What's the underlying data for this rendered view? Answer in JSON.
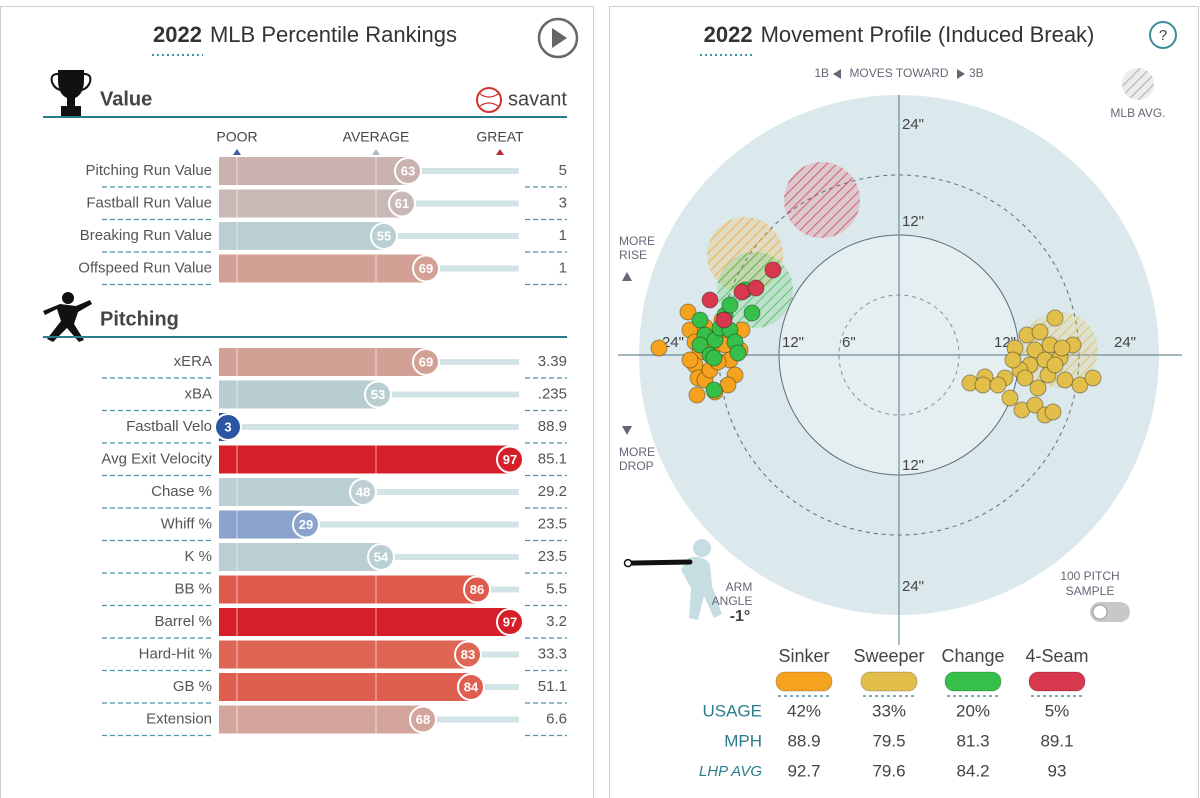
{
  "chart_data": [
    {
      "type": "bar",
      "title_year": "2022",
      "title": "MLB Percentile Rankings",
      "brand": "savant",
      "scale_labels": [
        "POOR",
        "AVERAGE",
        "GREAT"
      ],
      "xlim": [
        0,
        100
      ],
      "sections": [
        {
          "title": "Value",
          "categories": [
            "Pitching Run Value",
            "Fastball Run Value",
            "Breaking Run Value",
            "Offspeed Run Value"
          ],
          "values": [
            63,
            61,
            55,
            69
          ],
          "colors": [
            "#c9b2af",
            "#c8b9b6",
            "#b9cfd2",
            "#d3a096"
          ],
          "stats": [
            "5",
            "3",
            "1",
            "1"
          ]
        },
        {
          "title": "Pitching",
          "categories": [
            "xERA",
            "xBA",
            "Fastball Velo",
            "Avg Exit Velocity",
            "Chase %",
            "Whiff %",
            "K %",
            "BB %",
            "Barrel %",
            "Hard-Hit %",
            "GB %",
            "Extension"
          ],
          "values": [
            69,
            53,
            3,
            97,
            48,
            29,
            54,
            86,
            97,
            83,
            84,
            68
          ],
          "colors": [
            "#d3a096",
            "#b7cdd0",
            "#2d56a2",
            "#d5202a",
            "#bccfd3",
            "#8aa3cc",
            "#b9cfd2",
            "#dd5a4c",
            "#d5202a",
            "#df6554",
            "#de5e50",
            "#d4a59c"
          ],
          "stats": [
            "3.39",
            ".235",
            "88.9",
            "85.1",
            "29.2",
            "23.5",
            "23.5",
            "5.5",
            "3.2",
            "33.3",
            "51.1",
            "6.6"
          ]
        }
      ]
    },
    {
      "type": "scatter",
      "title_year": "2022",
      "title": "Movement Profile (Induced Break)",
      "help": "?",
      "direction": [
        "1B",
        "MOVES TOWARD",
        "3B"
      ],
      "avg_label": "MLB AVG.",
      "rise_label": [
        "MORE",
        "RISE"
      ],
      "drop_label": [
        "MORE",
        "DROP"
      ],
      "xlim": [
        -26,
        26
      ],
      "ylim": [
        -26,
        26
      ],
      "xticks": [
        {
          "value": -24,
          "label": "24\""
        },
        {
          "value": -12,
          "label": "12\""
        },
        {
          "value": -6,
          "label": "6\""
        },
        {
          "value": 12,
          "label": "12\""
        },
        {
          "value": 24,
          "label": "24\""
        }
      ],
      "yticks": [
        {
          "value": 24,
          "label": "24\""
        },
        {
          "value": 12,
          "label": "12\""
        },
        {
          "value": -12,
          "label": "12\""
        },
        {
          "value": -24,
          "label": "24\""
        }
      ],
      "rings": [
        {
          "value": 6,
          "dashed": true
        },
        {
          "value": 12,
          "dashed": false
        },
        {
          "value": 18,
          "dashed": true
        }
      ],
      "row_labels": [
        "USAGE",
        "MPH",
        "LHP AVG"
      ],
      "series": [
        {
          "name": "Sinker",
          "color": "#f5a31e",
          "usage": "42%",
          "mph": 88.9,
          "lhp_avg": 92.7,
          "avg": [
            -15.4,
            10.0
          ],
          "x": [
            -24.0,
            -21.1,
            -20.9,
            -20.4,
            -19.9,
            -20.4,
            -20.1,
            -20.2,
            -19.4,
            -18.9,
            -18.7,
            -18.1,
            -17.7,
            -17.4,
            -16.9,
            -16.4,
            -17.1,
            -15.9,
            -15.7,
            -18.4,
            -19.4,
            -20.9,
            -18.1
          ],
          "y": [
            0.7,
            4.3,
            2.5,
            1.3,
            0.3,
            -1.0,
            -2.3,
            -4.0,
            -2.5,
            -1.5,
            0.5,
            2.0,
            3.5,
            1.0,
            -0.5,
            -2.0,
            -3.0,
            0.5,
            2.5,
            -3.7,
            2.8,
            -0.5,
            -0.7
          ]
        },
        {
          "name": "Sweeper",
          "color": "#e2be4b",
          "usage": "33%",
          "mph": 79.5,
          "lhp_avg": 79.6,
          "avg": [
            16.1,
            0.5
          ],
          "x": [
            12.8,
            14.1,
            15.6,
            17.4,
            15.1,
            13.6,
            11.6,
            13.1,
            14.6,
            16.1,
            12.1,
            10.6,
            8.6,
            7.1,
            8.4,
            9.9,
            11.1,
            12.3,
            13.6,
            14.6,
            15.4,
            16.6,
            18.1,
            19.4,
            14.9,
            15.6,
            12.6,
            11.4,
            16.3,
            13.9
          ],
          "y": [
            2.0,
            2.3,
            3.7,
            1.0,
            1.0,
            0.5,
            0.7,
            -1.0,
            -0.5,
            -0.3,
            -1.5,
            -2.3,
            -2.2,
            -2.8,
            -3.0,
            -3.0,
            -4.3,
            -5.5,
            -5.0,
            -6.0,
            -5.7,
            -2.5,
            -3.0,
            -2.3,
            -2.0,
            -1.0,
            -2.3,
            -0.5,
            0.7,
            -3.3
          ]
        },
        {
          "name": "Change",
          "color": "#36bf4a",
          "usage": "20%",
          "mph": 81.3,
          "lhp_avg": 84.2,
          "avg": [
            -14.4,
            6.5
          ],
          "x": [
            -19.9,
            -19.4,
            -19.9,
            -18.9,
            -18.4,
            -17.9,
            -17.4,
            -16.9,
            -16.4,
            -18.5,
            -14.7,
            -15.4,
            -18.5,
            -16.1,
            -16.9
          ],
          "y": [
            3.5,
            2.0,
            1.0,
            0.0,
            1.5,
            2.7,
            4.0,
            2.5,
            1.3,
            -3.5,
            4.2,
            6.5,
            -0.3,
            0.2,
            5.0
          ]
        },
        {
          "name": "4-Seam",
          "color": "#d7384e",
          "usage": "5%",
          "mph": 89.1,
          "lhp_avg": 93.0,
          "avg": [
            -7.7,
            15.5
          ],
          "x": [
            -18.9,
            -17.5,
            -15.7,
            -14.3,
            -12.6
          ],
          "y": [
            5.5,
            3.5,
            6.3,
            6.7,
            8.5
          ]
        }
      ]
    }
  ],
  "arm_angle": {
    "label": [
      "ARM",
      "ANGLE"
    ],
    "angle": {
      "value": -1,
      "label": "-1°"
    }
  },
  "sample_toggle": [
    "100 PITCH",
    "SAMPLE"
  ]
}
